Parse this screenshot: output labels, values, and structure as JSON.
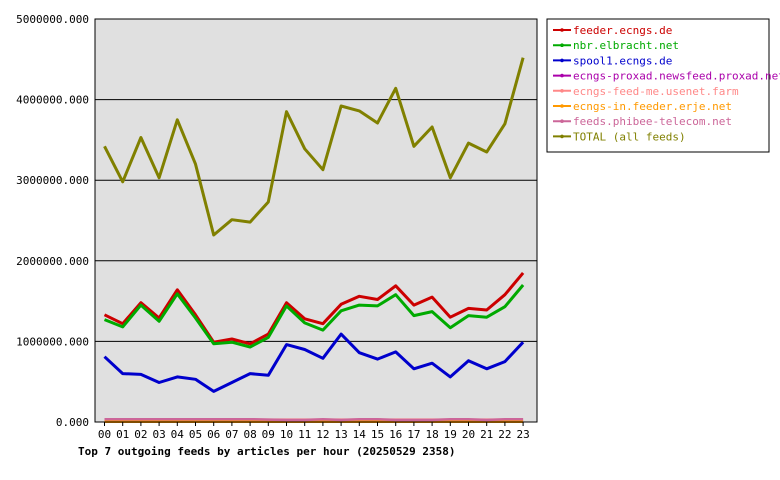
{
  "chart_data": {
    "type": "line",
    "title": "Top 7 outgoing feeds by articles per hour (20250529 2358)",
    "xlabel": "",
    "ylabel": "",
    "ylim": [
      0,
      5000000
    ],
    "yticks": [
      0,
      1000000,
      2000000,
      3000000,
      4000000,
      5000000
    ],
    "ytick_labels": [
      "0.000",
      "1000000.000",
      "2000000.000",
      "3000000.000",
      "4000000.000",
      "5000000.000"
    ],
    "grid": true,
    "legend_position": "top-right",
    "background": "#e0e0e0",
    "categories": [
      "00",
      "01",
      "02",
      "03",
      "04",
      "05",
      "06",
      "07",
      "08",
      "09",
      "10",
      "11",
      "12",
      "13",
      "14",
      "15",
      "16",
      "17",
      "18",
      "19",
      "20",
      "21",
      "22",
      "23"
    ],
    "series": [
      {
        "name": "feeder.ecngs.de",
        "color": "#cc0000",
        "values": [
          1330000,
          1220000,
          1480000,
          1290000,
          1640000,
          1330000,
          990000,
          1030000,
          970000,
          1090000,
          1480000,
          1280000,
          1220000,
          1460000,
          1560000,
          1520000,
          1690000,
          1450000,
          1550000,
          1300000,
          1410000,
          1390000,
          1580000,
          1850000
        ]
      },
      {
        "name": "nbr.elbracht.net",
        "color": "#00aa00",
        "values": [
          1270000,
          1180000,
          1450000,
          1250000,
          1590000,
          1290000,
          970000,
          990000,
          930000,
          1050000,
          1440000,
          1230000,
          1140000,
          1380000,
          1450000,
          1440000,
          1580000,
          1320000,
          1370000,
          1170000,
          1320000,
          1300000,
          1430000,
          1700000
        ]
      },
      {
        "name": "spool1.ecngs.de",
        "color": "#0000cc",
        "values": [
          810000,
          600000,
          590000,
          490000,
          560000,
          530000,
          380000,
          490000,
          600000,
          580000,
          960000,
          900000,
          790000,
          1090000,
          860000,
          780000,
          870000,
          660000,
          730000,
          560000,
          760000,
          660000,
          750000,
          990000
        ]
      },
      {
        "name": "ecngs-proxad.newsfeed.proxad.net",
        "color": "#aa00aa",
        "values": [
          5000,
          5000,
          5000,
          5000,
          5000,
          5000,
          5000,
          5000,
          5000,
          5000,
          5000,
          5000,
          5000,
          5000,
          5000,
          5000,
          5000,
          5000,
          5000,
          5000,
          5000,
          5000,
          5000,
          5000
        ]
      },
      {
        "name": "ecngs-feed-me.usenet.farm",
        "color": "#ff8888",
        "values": [
          30000,
          30000,
          30000,
          30000,
          30000,
          30000,
          30000,
          30000,
          30000,
          30000,
          30000,
          30000,
          30000,
          30000,
          30000,
          30000,
          30000,
          30000,
          30000,
          30000,
          30000,
          30000,
          30000,
          30000
        ]
      },
      {
        "name": "ecngs-in.feeder.erje.net",
        "color": "#ff9900",
        "values": [
          2000,
          2000,
          2000,
          2000,
          2000,
          2000,
          2000,
          2000,
          2000,
          2000,
          2000,
          2000,
          2000,
          2000,
          2000,
          2000,
          2000,
          2000,
          2000,
          2000,
          2000,
          2000,
          2000,
          2000
        ]
      },
      {
        "name": "feeds.phibee-telecom.net",
        "color": "#cc6699",
        "values": [
          35000,
          35000,
          35000,
          35000,
          35000,
          35000,
          35000,
          35000,
          35000,
          30000,
          25000,
          25000,
          35000,
          25000,
          35000,
          35000,
          25000,
          25000,
          25000,
          35000,
          35000,
          25000,
          35000,
          35000
        ]
      },
      {
        "name": "TOTAL (all feeds)",
        "color": "#808000",
        "values": [
          3420000,
          2980000,
          3530000,
          3030000,
          3750000,
          3200000,
          2320000,
          2510000,
          2480000,
          2730000,
          3850000,
          3390000,
          3130000,
          3920000,
          3860000,
          3710000,
          4140000,
          3420000,
          3660000,
          3030000,
          3460000,
          3350000,
          3700000,
          4520000
        ]
      }
    ]
  }
}
